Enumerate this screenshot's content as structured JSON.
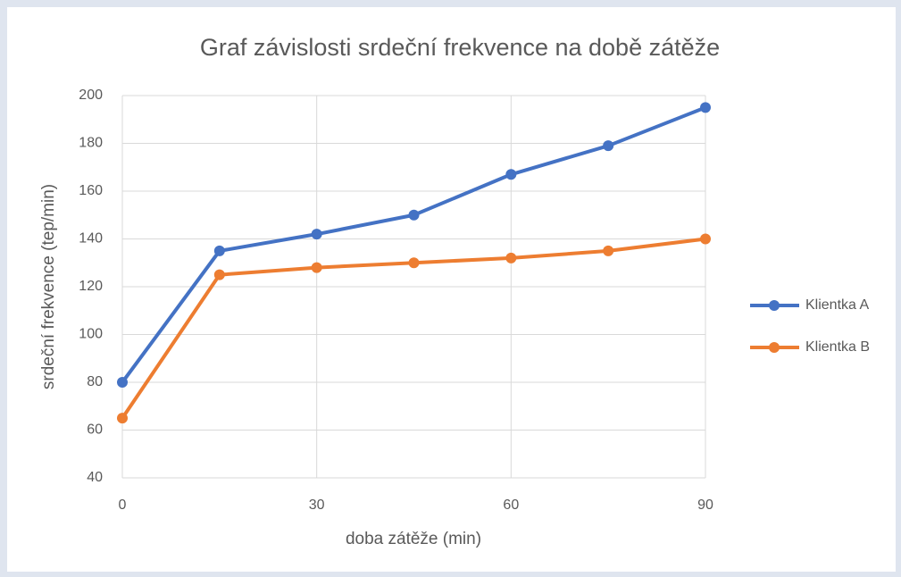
{
  "chart_data": {
    "type": "line",
    "title": "Graf závislosti srdeční frekvence na době zátěže",
    "x_label": "doba zátěže (min)",
    "y_label": "srdeční frekvence (tep/min)",
    "x": [
      0,
      15,
      30,
      45,
      60,
      75,
      90
    ],
    "series": [
      {
        "name": "Klientka A",
        "color": "#4472c4",
        "values": [
          80,
          135,
          142,
          150,
          167,
          179,
          195
        ]
      },
      {
        "name": "Klientka B",
        "color": "#ed7d31",
        "values": [
          65,
          125,
          128,
          130,
          132,
          135,
          140
        ]
      }
    ],
    "xlim": [
      0,
      90
    ],
    "xticks": [
      0,
      30,
      60,
      90
    ],
    "ylim": [
      40,
      200
    ],
    "yticks": [
      40,
      60,
      80,
      100,
      120,
      140,
      160,
      180,
      200
    ],
    "grid": true,
    "legend": "right"
  }
}
